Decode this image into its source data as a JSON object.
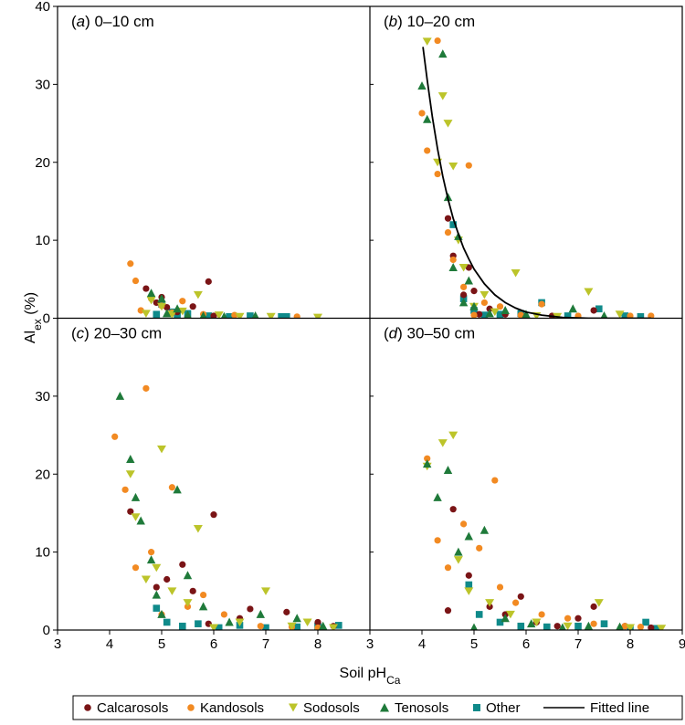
{
  "legend": {
    "calcarosols": "Calcarosols",
    "kandosols": "Kandosols",
    "sodosols": "Sodosols",
    "tenosols": "Tenosols",
    "other": "Other",
    "fitted_line": "Fitted line"
  },
  "axes": {
    "ylabel_main": "Al",
    "ylabel_sub": "ex",
    "ylabel_unit": " (%)",
    "xlabel_main": "Soil pH",
    "xlabel_sub": "Ca"
  },
  "chart_data": {
    "type": "scatter",
    "grid": false,
    "legend_position": "bottom",
    "x_ticks": [
      "3",
      "4",
      "5",
      "6",
      "7",
      "8",
      "9"
    ],
    "y_ticks": [
      "0",
      "10",
      "20",
      "30",
      "40"
    ],
    "xlim_left": [
      3,
      9
    ],
    "xlim_right": [
      3,
      9
    ],
    "ylim": [
      0,
      40
    ],
    "series_colors": {
      "Calcarosols": "#7a1416",
      "Kandosols": "#f28a22",
      "Sodosols": "#bcc42a",
      "Tenosols": "#1f7a3a",
      "Other": "#0f8a8a",
      "Fitted line": "#000000"
    },
    "panels": [
      {
        "id": "a",
        "letter": "a",
        "depth": "0–10 cm",
        "series": {
          "Calcarosols": [
            [
              4.7,
              3.8
            ],
            [
              4.9,
              2.0
            ],
            [
              5.0,
              2.7
            ],
            [
              5.1,
              1.4
            ],
            [
              5.3,
              0.8
            ],
            [
              5.6,
              1.5
            ],
            [
              5.9,
              4.7
            ],
            [
              6.0,
              0.3
            ]
          ],
          "Kandosols": [
            [
              4.4,
              7.0
            ],
            [
              4.5,
              4.8
            ],
            [
              4.6,
              1.0
            ],
            [
              4.8,
              2.5
            ],
            [
              5.0,
              1.6
            ],
            [
              5.2,
              0.7
            ],
            [
              5.4,
              2.2
            ],
            [
              5.8,
              0.5
            ],
            [
              6.4,
              0.4
            ],
            [
              7.6,
              0.2
            ]
          ],
          "Sodosols": [
            [
              4.5,
              -0.5
            ],
            [
              4.7,
              0.6
            ],
            [
              4.8,
              2.3
            ],
            [
              5.0,
              1.5
            ],
            [
              5.2,
              0.5
            ],
            [
              5.4,
              0.9
            ],
            [
              5.7,
              3.0
            ],
            [
              6.1,
              0.4
            ],
            [
              6.5,
              0.2
            ],
            [
              7.1,
              0.2
            ],
            [
              8.0,
              0.1
            ]
          ],
          "Tenosols": [
            [
              4.8,
              3.2
            ],
            [
              5.0,
              2.5
            ],
            [
              5.1,
              0.6
            ],
            [
              5.3,
              1.2
            ],
            [
              5.5,
              0.4
            ],
            [
              5.8,
              0.3
            ],
            [
              6.2,
              0.2
            ],
            [
              6.8,
              0.3
            ]
          ],
          "Other": [
            [
              4.9,
              0.5
            ],
            [
              5.0,
              1.8
            ],
            [
              5.2,
              0.8
            ],
            [
              5.3,
              0.3
            ],
            [
              5.5,
              0.6
            ],
            [
              5.9,
              0.3
            ],
            [
              6.3,
              0.2
            ],
            [
              6.7,
              0.3
            ],
            [
              7.3,
              0.2
            ],
            [
              7.4,
              0.2
            ]
          ]
        }
      },
      {
        "id": "b",
        "letter": "b",
        "depth": "10–20 cm",
        "series": {
          "Calcarosols": [
            [
              4.5,
              12.8
            ],
            [
              4.6,
              8.0
            ],
            [
              4.8,
              3.0
            ],
            [
              4.9,
              6.5
            ],
            [
              5.0,
              3.5
            ],
            [
              5.1,
              0.5
            ],
            [
              5.3,
              1.2
            ],
            [
              5.6,
              0.5
            ],
            [
              5.9,
              0.4
            ],
            [
              6.5,
              0.3
            ],
            [
              7.3,
              1.0
            ]
          ],
          "Kandosols": [
            [
              4.0,
              26.3
            ],
            [
              4.1,
              21.5
            ],
            [
              4.3,
              35.6
            ],
            [
              4.3,
              18.5
            ],
            [
              4.5,
              11.0
            ],
            [
              4.6,
              7.5
            ],
            [
              4.8,
              4.0
            ],
            [
              4.9,
              19.6
            ],
            [
              5.0,
              0.4
            ],
            [
              5.2,
              2.0
            ],
            [
              5.5,
              1.5
            ],
            [
              5.9,
              0.4
            ],
            [
              6.3,
              1.8
            ],
            [
              7.0,
              0.3
            ],
            [
              8.0,
              0.3
            ],
            [
              8.4,
              0.3
            ]
          ],
          "Sodosols": [
            [
              4.1,
              35.5
            ],
            [
              4.3,
              20.0
            ],
            [
              4.4,
              28.5
            ],
            [
              4.5,
              25.0
            ],
            [
              4.6,
              19.5
            ],
            [
              4.7,
              10.0
            ],
            [
              4.8,
              6.5
            ],
            [
              5.0,
              1.5
            ],
            [
              5.2,
              3.0
            ],
            [
              5.4,
              0.8
            ],
            [
              5.8,
              5.8
            ],
            [
              6.2,
              0.3
            ],
            [
              6.6,
              0.2
            ],
            [
              7.2,
              3.4
            ],
            [
              7.8,
              0.5
            ]
          ],
          "Tenosols": [
            [
              4.0,
              29.8
            ],
            [
              4.1,
              25.5
            ],
            [
              4.4,
              33.9
            ],
            [
              4.5,
              15.5
            ],
            [
              4.6,
              6.5
            ],
            [
              4.7,
              10.5
            ],
            [
              4.8,
              2.0
            ],
            [
              4.9,
              4.8
            ],
            [
              5.0,
              1.5
            ],
            [
              5.3,
              0.6
            ],
            [
              5.6,
              1.0
            ],
            [
              6.0,
              0.5
            ],
            [
              6.9,
              1.2
            ],
            [
              7.5,
              0.3
            ]
          ],
          "Other": [
            [
              4.6,
              12.0
            ],
            [
              4.8,
              2.5
            ],
            [
              5.0,
              1.0
            ],
            [
              5.2,
              0.4
            ],
            [
              5.5,
              0.5
            ],
            [
              5.9,
              0.6
            ],
            [
              6.3,
              2.0
            ],
            [
              6.8,
              0.3
            ],
            [
              7.4,
              1.2
            ],
            [
              7.9,
              0.3
            ],
            [
              8.2,
              0.2
            ]
          ],
          "Fitted line": [
            [
              4.02,
              34.8
            ],
            [
              4.1,
              30.6
            ],
            [
              4.2,
              25.8
            ],
            [
              4.3,
              21.7
            ],
            [
              4.4,
              18.2
            ],
            [
              4.5,
              15.3
            ],
            [
              4.6,
              12.8
            ],
            [
              4.7,
              10.8
            ],
            [
              4.8,
              9.0
            ],
            [
              4.9,
              7.6
            ],
            [
              5.0,
              6.3
            ],
            [
              5.2,
              4.4
            ],
            [
              5.4,
              3.0
            ],
            [
              5.6,
              2.0
            ],
            [
              5.8,
              1.3
            ],
            [
              6.0,
              0.8
            ],
            [
              6.3,
              0.4
            ],
            [
              6.7,
              0.1
            ],
            [
              7.2,
              0.0
            ],
            [
              8.0,
              0.0
            ],
            [
              8.4,
              0.0
            ]
          ]
        }
      },
      {
        "id": "c",
        "letter": "c",
        "depth": "20–30 cm",
        "series": {
          "Calcarosols": [
            [
              4.4,
              15.2
            ],
            [
              4.9,
              5.5
            ],
            [
              5.1,
              6.5
            ],
            [
              5.4,
              8.4
            ],
            [
              5.6,
              5.0
            ],
            [
              5.9,
              0.8
            ],
            [
              6.0,
              14.8
            ],
            [
              6.5,
              1.5
            ],
            [
              6.7,
              2.7
            ],
            [
              7.4,
              2.3
            ],
            [
              8.0,
              1.0
            ],
            [
              8.3,
              0.5
            ]
          ],
          "Kandosols": [
            [
              4.1,
              24.8
            ],
            [
              4.3,
              18.0
            ],
            [
              4.5,
              8.0
            ],
            [
              4.7,
              31.0
            ],
            [
              4.8,
              10.0
            ],
            [
              5.0,
              2.0
            ],
            [
              5.2,
              18.3
            ],
            [
              5.5,
              3.0
            ],
            [
              5.8,
              4.5
            ],
            [
              6.2,
              2.0
            ],
            [
              6.9,
              0.5
            ],
            [
              7.5,
              0.4
            ],
            [
              8.0,
              0.3
            ]
          ],
          "Sodosols": [
            [
              4.4,
              20.0
            ],
            [
              4.5,
              14.5
            ],
            [
              4.7,
              6.5
            ],
            [
              4.9,
              8.0
            ],
            [
              5.0,
              23.2
            ],
            [
              5.2,
              5.0
            ],
            [
              5.5,
              3.5
            ],
            [
              5.7,
              13.0
            ],
            [
              6.0,
              0.3
            ],
            [
              6.5,
              1.0
            ],
            [
              7.0,
              5.0
            ],
            [
              7.5,
              0.5
            ],
            [
              7.8,
              1.0
            ],
            [
              8.3,
              0.3
            ]
          ],
          "Tenosols": [
            [
              4.2,
              30.0
            ],
            [
              4.4,
              21.9
            ],
            [
              4.5,
              17.0
            ],
            [
              4.6,
              14.0
            ],
            [
              4.8,
              9.0
            ],
            [
              4.9,
              4.5
            ],
            [
              5.0,
              2.0
            ],
            [
              5.3,
              18.0
            ],
            [
              5.5,
              7.0
            ],
            [
              5.8,
              3.0
            ],
            [
              6.3,
              1.0
            ],
            [
              6.9,
              2.0
            ],
            [
              7.6,
              1.5
            ],
            [
              8.1,
              0.5
            ]
          ],
          "Other": [
            [
              4.9,
              2.8
            ],
            [
              5.1,
              1.0
            ],
            [
              5.4,
              0.5
            ],
            [
              5.7,
              0.8
            ],
            [
              6.1,
              0.3
            ],
            [
              6.5,
              0.6
            ],
            [
              7.0,
              0.3
            ],
            [
              7.6,
              0.4
            ],
            [
              8.0,
              0.5
            ],
            [
              8.4,
              0.6
            ]
          ]
        }
      },
      {
        "id": "d",
        "letter": "d",
        "depth": "30–50 cm",
        "series": {
          "Calcarosols": [
            [
              4.5,
              2.5
            ],
            [
              4.6,
              15.5
            ],
            [
              4.9,
              7.0
            ],
            [
              5.3,
              3.0
            ],
            [
              5.6,
              2.0
            ],
            [
              5.9,
              4.3
            ],
            [
              6.2,
              1.0
            ],
            [
              6.6,
              0.5
            ],
            [
              7.0,
              1.5
            ],
            [
              7.3,
              3.0
            ],
            [
              7.9,
              0.5
            ],
            [
              8.4,
              0.3
            ]
          ],
          "Kandosols": [
            [
              4.1,
              22.0
            ],
            [
              4.3,
              11.5
            ],
            [
              4.5,
              8.0
            ],
            [
              4.8,
              13.6
            ],
            [
              5.1,
              10.5
            ],
            [
              5.4,
              19.2
            ],
            [
              5.5,
              5.5
            ],
            [
              5.8,
              3.5
            ],
            [
              6.3,
              2.0
            ],
            [
              6.8,
              1.5
            ],
            [
              7.3,
              0.8
            ],
            [
              7.9,
              0.5
            ],
            [
              8.2,
              0.4
            ]
          ],
          "Sodosols": [
            [
              4.1,
              21.0
            ],
            [
              4.4,
              24.0
            ],
            [
              4.6,
              25.0
            ],
            [
              4.7,
              9.0
            ],
            [
              4.9,
              5.0
            ],
            [
              5.3,
              3.5
            ],
            [
              5.7,
              2.0
            ],
            [
              6.2,
              1.0
            ],
            [
              6.8,
              0.5
            ],
            [
              7.4,
              3.5
            ],
            [
              8.0,
              0.3
            ],
            [
              8.6,
              0.2
            ]
          ],
          "Tenosols": [
            [
              4.1,
              21.3
            ],
            [
              4.3,
              17.0
            ],
            [
              4.5,
              20.5
            ],
            [
              4.7,
              10.0
            ],
            [
              4.9,
              12.0
            ],
            [
              5.0,
              0.3
            ],
            [
              5.2,
              12.8
            ],
            [
              5.6,
              1.5
            ],
            [
              6.1,
              0.8
            ],
            [
              6.7,
              0.3
            ],
            [
              7.2,
              0.5
            ],
            [
              7.8,
              0.4
            ]
          ],
          "Other": [
            [
              4.9,
              5.8
            ],
            [
              5.1,
              2.0
            ],
            [
              5.5,
              1.0
            ],
            [
              5.9,
              0.5
            ],
            [
              6.4,
              0.4
            ],
            [
              7.0,
              0.5
            ],
            [
              7.5,
              0.8
            ],
            [
              8.0,
              0.3
            ],
            [
              8.3,
              1.0
            ],
            [
              8.5,
              0.2
            ]
          ]
        }
      }
    ]
  }
}
